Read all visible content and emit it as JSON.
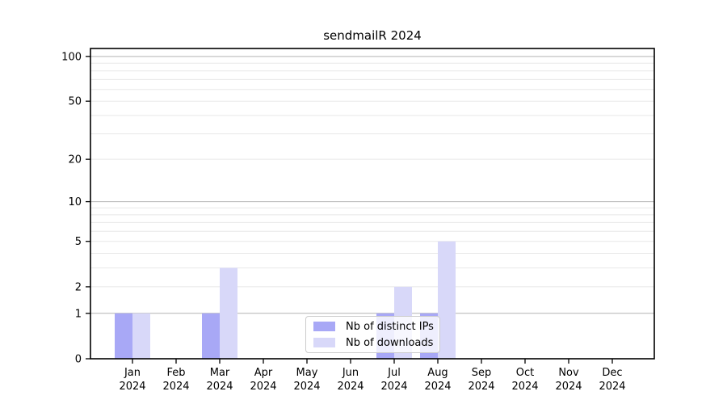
{
  "chart_data": {
    "type": "bar",
    "title": "sendmailR 2024",
    "scale": "log1p",
    "categories": [
      "Jan",
      "Feb",
      "Mar",
      "Apr",
      "May",
      "Jun",
      "Jul",
      "Aug",
      "Sep",
      "Oct",
      "Nov",
      "Dec"
    ],
    "category_year": "2024",
    "series": [
      {
        "name": "Nb of distinct IPs",
        "color": "#a8a8f6",
        "values": [
          1,
          0,
          1,
          0,
          0,
          0,
          1,
          1,
          0,
          0,
          0,
          0
        ]
      },
      {
        "name": "Nb of downloads",
        "color": "#d8d8f9",
        "values": [
          1,
          0,
          3,
          0,
          0,
          0,
          2,
          5,
          0,
          0,
          0,
          0
        ]
      }
    ],
    "yticks": [
      0,
      1,
      2,
      5,
      10,
      20,
      50,
      100
    ],
    "ylim": [
      0,
      113
    ],
    "xlabel": "",
    "ylabel": "",
    "grid": {
      "minor_values": [
        2,
        3,
        4,
        5,
        6,
        7,
        8,
        9,
        20,
        30,
        40,
        50,
        60,
        70,
        80,
        90
      ],
      "major_values": [
        1,
        10,
        100
      ],
      "minor_color": "#e8e8e8",
      "major_color": "#b3b3b3"
    },
    "legend_position": "lower center",
    "axis_color": "#000000",
    "text_color": "#000000",
    "background_color": "#ffffff"
  }
}
